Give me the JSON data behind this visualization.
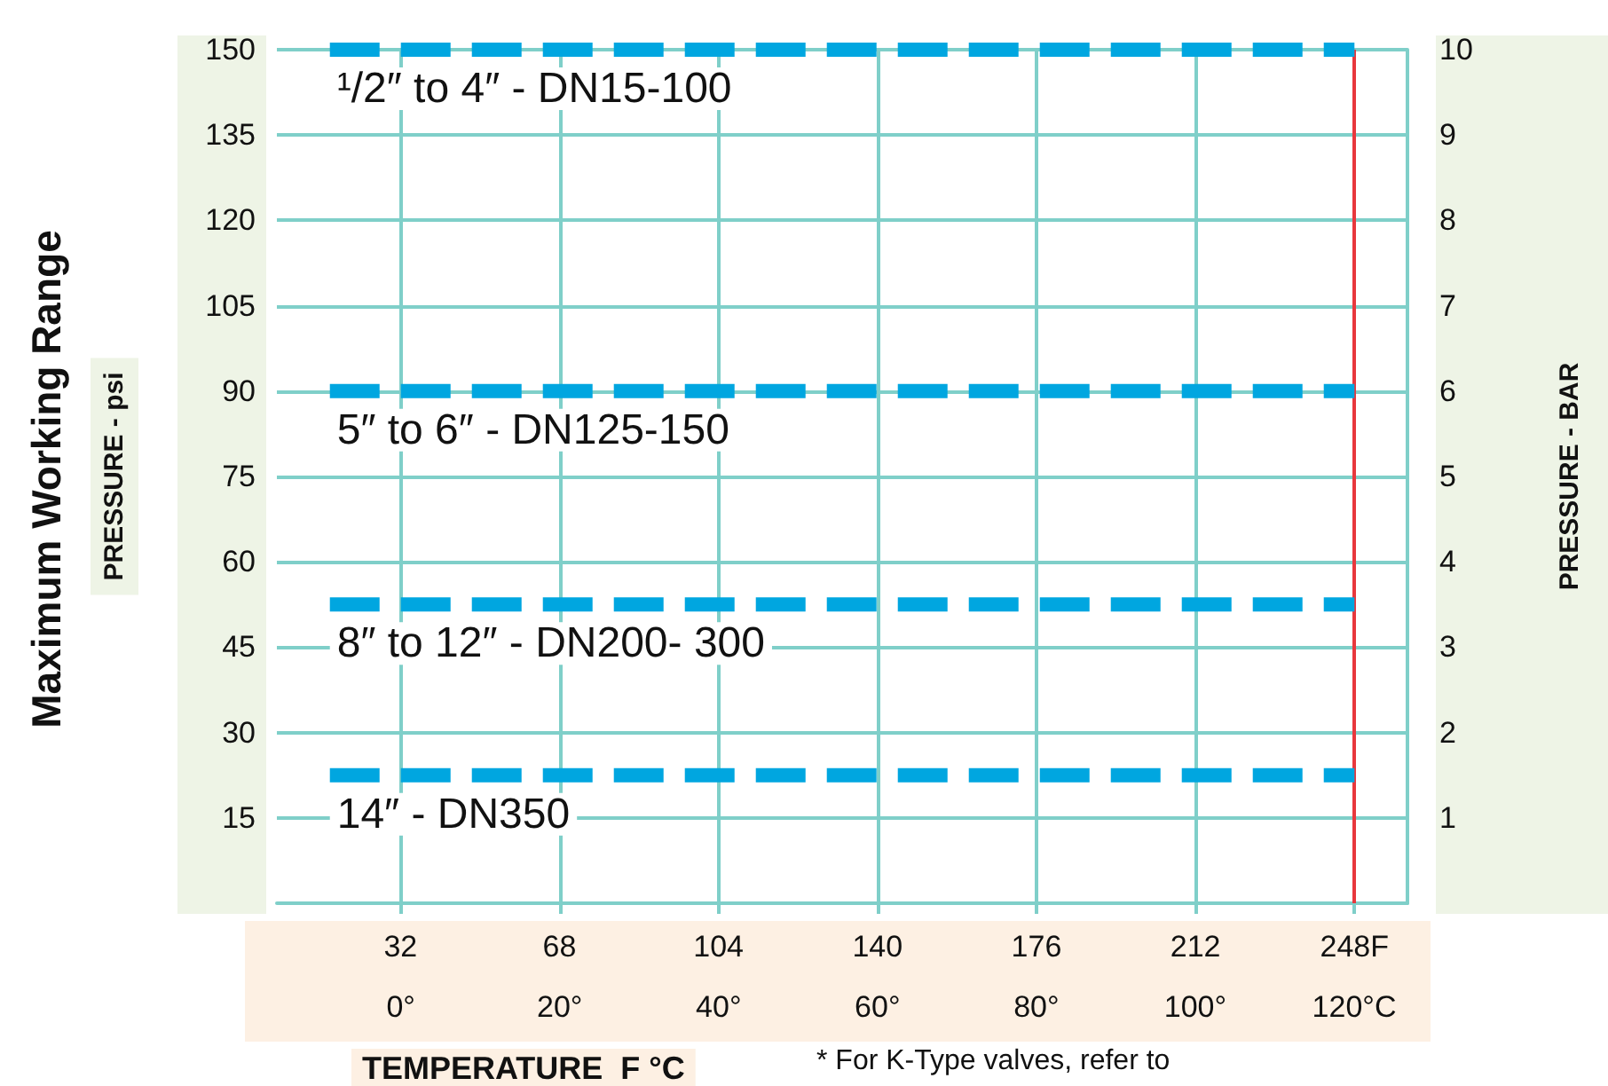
{
  "chart_data": {
    "type": "line",
    "title": "Maximum Working Range",
    "xlabel": "TEMPERATURE  F °C",
    "ylabel": "PRESSURE - psi",
    "y2label": "PRESSURE - BAR",
    "annotations": [
      "* For K-Type valves, refer to"
    ],
    "x": [
      16,
      248
    ],
    "series": [
      {
        "name": "¹/2″ to 4″ - DN15-100",
        "color": "#00a6e0",
        "values": [
          150,
          150
        ]
      },
      {
        "name": "5″ to 6″ - DN125-150",
        "color": "#00a6e0",
        "values": [
          90,
          90
        ]
      },
      {
        "name": "8″ to 12″ - DN200- 300",
        "color": "#00a6e0",
        "values": [
          52.5,
          52.5
        ]
      },
      {
        "name": "14″ - DN350",
        "color": "#00a6e0",
        "values": [
          22.5,
          22.5
        ]
      }
    ],
    "xlim": [
      4,
      260
    ],
    "xticks": [
      32,
      68,
      104,
      140,
      176,
      212,
      {
        "value": 248,
        "label": "248F"
      }
    ],
    "x2lim": [
      -15.6,
      126.7
    ],
    "x2ticks": [
      {
        "value": 0,
        "label": "0°"
      },
      {
        "value": 20,
        "label": "20°"
      },
      {
        "value": 40,
        "label": "40°"
      },
      {
        "value": 60,
        "label": "60°"
      },
      {
        "value": 80,
        "label": "80°"
      },
      {
        "value": 100,
        "label": "100°"
      },
      {
        "value": 120,
        "label": "120°C"
      }
    ],
    "ylim": [
      0,
      150
    ],
    "yticks": [
      15,
      30,
      45,
      60,
      75,
      90,
      105,
      120,
      135,
      150
    ],
    "y2lim": [
      0,
      10
    ],
    "y2ticks": [
      1,
      2,
      3,
      4,
      5,
      6,
      7,
      8,
      9,
      10
    ],
    "ref_lines": [
      {
        "axis": "x",
        "value": 248,
        "color": "#e8383d"
      }
    ],
    "grid": true,
    "legend": false,
    "marker": "none",
    "line_style": "dashed"
  }
}
